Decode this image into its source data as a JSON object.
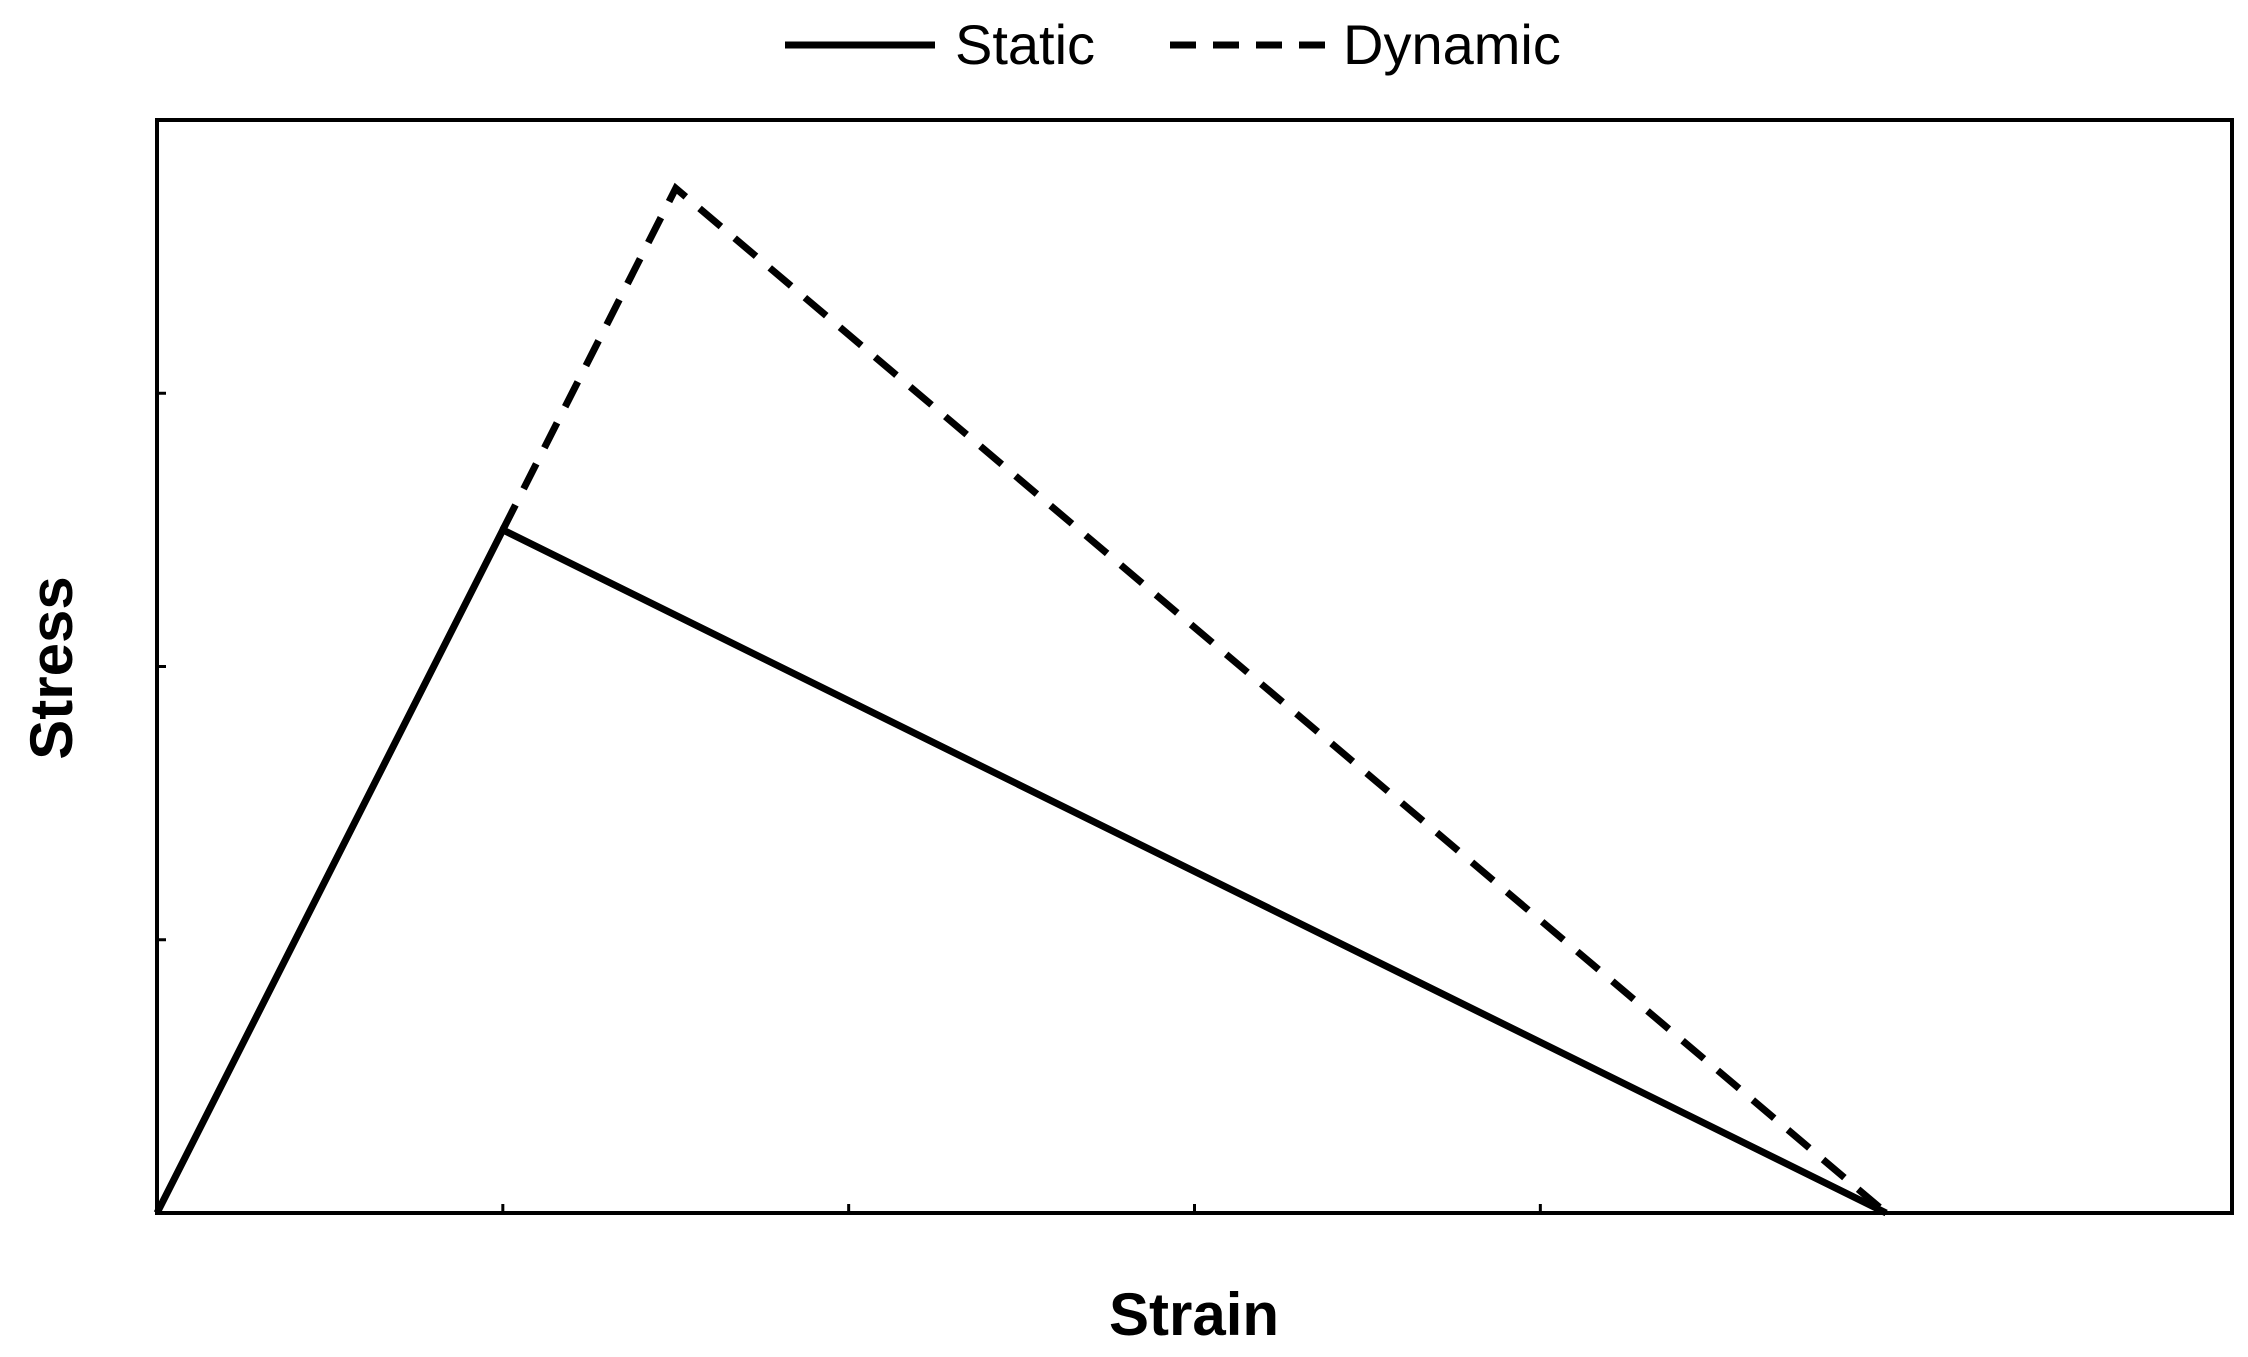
{
  "chart_data": {
    "type": "line",
    "title": "",
    "xlabel": "Strain",
    "ylabel": "Stress",
    "xlim": [
      0,
      6
    ],
    "ylim": [
      0,
      4
    ],
    "x_ticks": [
      1,
      2,
      3,
      4
    ],
    "y_ticks": [
      1,
      2,
      3
    ],
    "tick_labels_visible": false,
    "grid": false,
    "legend_position": "top-center",
    "series": [
      {
        "name": "Static",
        "style": "solid",
        "color": "#000000",
        "points": [
          [
            0,
            0
          ],
          [
            1.0,
            2.5
          ],
          [
            5.0,
            0
          ]
        ]
      },
      {
        "name": "Dynamic",
        "style": "dashed",
        "color": "#000000",
        "points": [
          [
            1.0,
            2.5
          ],
          [
            1.5,
            3.75
          ],
          [
            5.0,
            0
          ]
        ]
      }
    ]
  }
}
